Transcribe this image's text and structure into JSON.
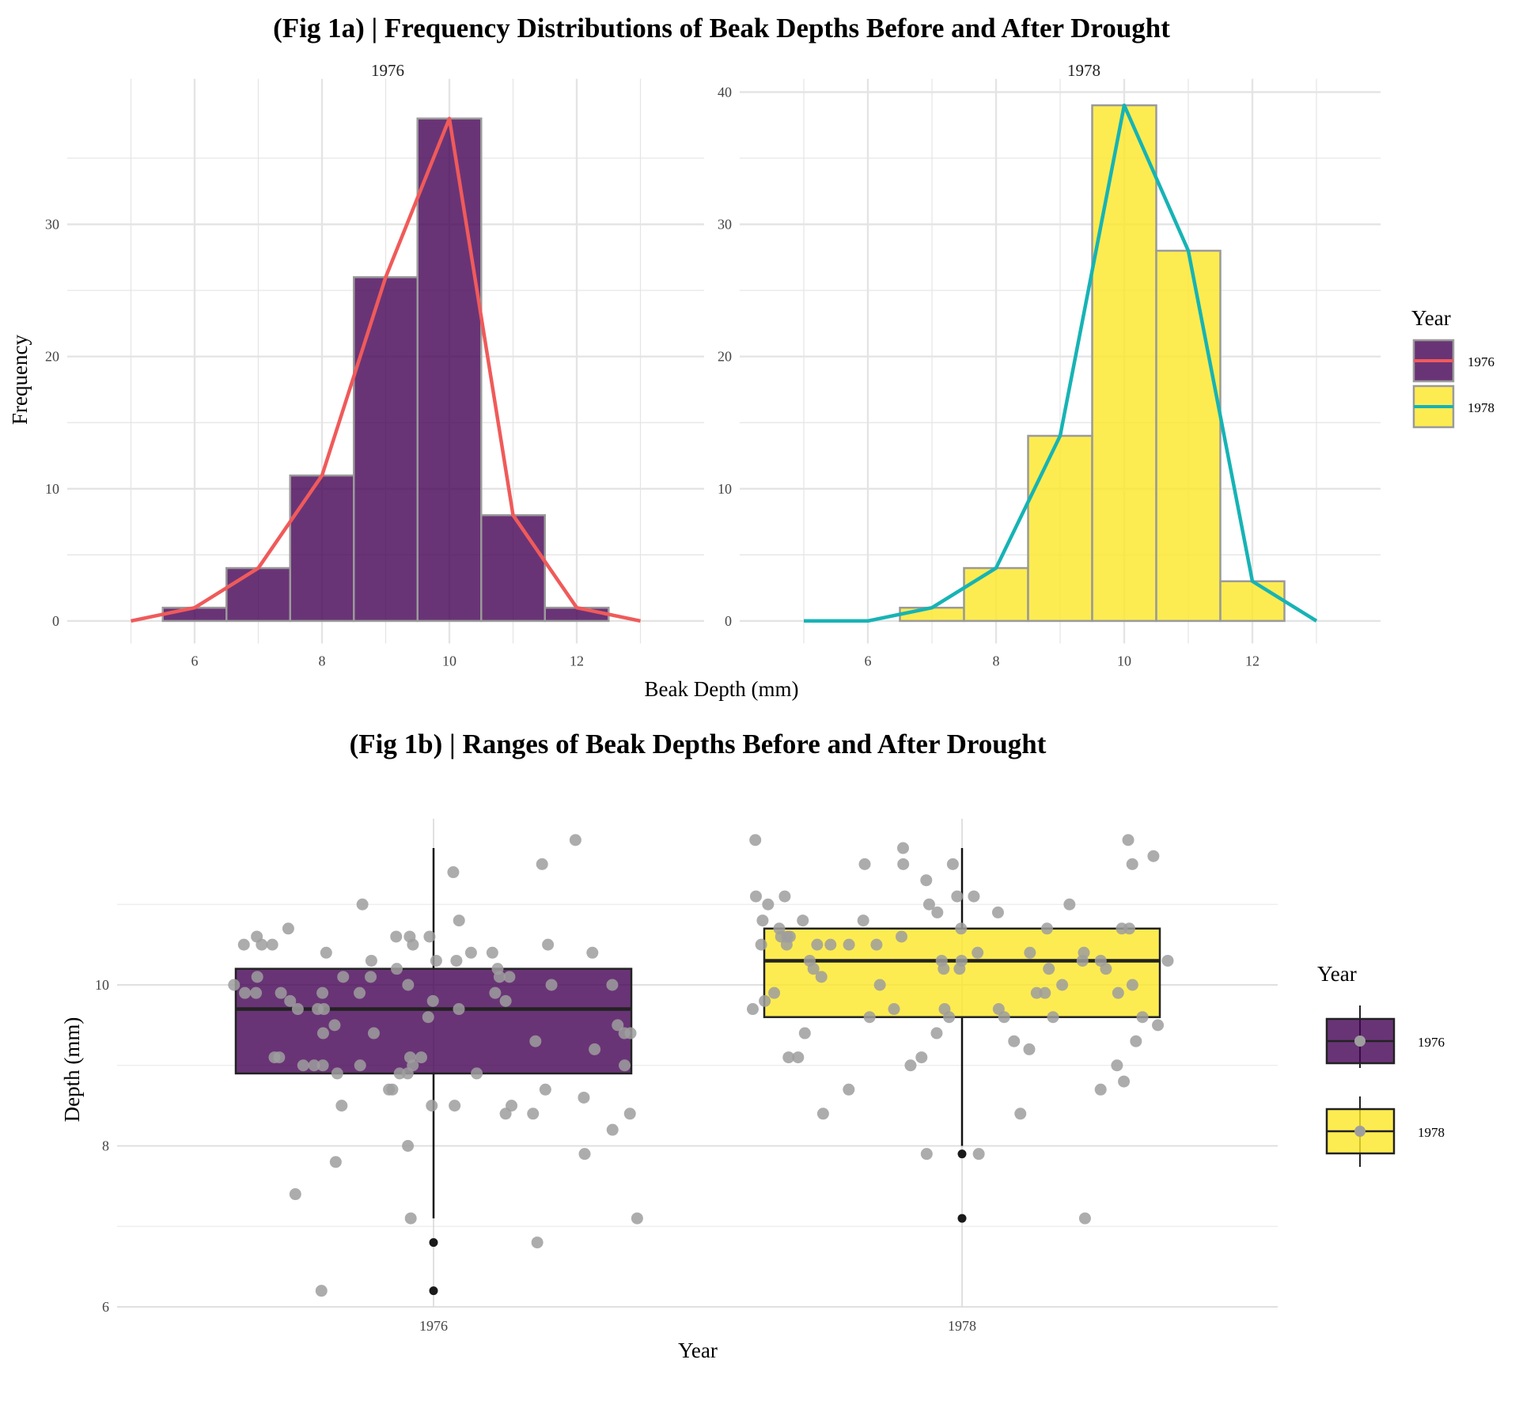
{
  "fig1a": {
    "title": "(Fig 1a) | Frequency Distributions of Beak Depths Before and After Drought",
    "xlabel": "Beak Depth (mm)",
    "ylabel": "Frequency",
    "legend_title": "Year"
  },
  "fig1b": {
    "title": "(Fig 1b) | Ranges of Beak Depths Before and After Drought",
    "xlabel": "Year",
    "ylabel": "Depth (mm)",
    "legend_title": "Year"
  },
  "colors": {
    "fill_1976": "#440154",
    "fill_1978": "#FDE725",
    "line_1976": "#F05A5A",
    "line_1978": "#17B3B5",
    "bar_border": "#9a9a9a",
    "grid": "#e4e4e4",
    "jitter": "#9e9e9e",
    "outlier": "#1a1a1a"
  },
  "chart_data": [
    {
      "type": "bar",
      "panel": "1976",
      "x_categories": [
        6,
        7,
        8,
        9,
        10,
        11,
        12
      ],
      "values": [
        1,
        4,
        11,
        26,
        38,
        8,
        1
      ],
      "x_ticks": [
        6,
        8,
        10,
        12
      ],
      "y_ticks": [
        0,
        10,
        20,
        30
      ],
      "xlim": [
        4.0,
        14.0
      ],
      "ylim": [
        -1.7,
        41
      ],
      "polygon": {
        "x": [
          5,
          6,
          7,
          8,
          9,
          10,
          11,
          12,
          13
        ],
        "y": [
          0,
          1,
          4,
          11,
          26,
          38,
          8,
          1,
          0
        ]
      },
      "legend": "right"
    },
    {
      "type": "bar",
      "panel": "1978",
      "x_categories": [
        6,
        7,
        8,
        9,
        10,
        11,
        12
      ],
      "values": [
        0,
        1,
        4,
        14,
        39,
        28,
        3
      ],
      "x_ticks": [
        6,
        8,
        10,
        12
      ],
      "y_ticks": [
        0,
        10,
        20,
        30,
        40
      ],
      "xlim": [
        4.0,
        14.0
      ],
      "ylim": [
        -1.7,
        41
      ],
      "polygon": {
        "x": [
          5,
          6,
          7,
          8,
          9,
          10,
          11,
          12,
          13
        ],
        "y": [
          0,
          0,
          1,
          4,
          14,
          39,
          28,
          3,
          0
        ]
      },
      "legend": "right"
    },
    {
      "type": "box",
      "categories": [
        "1976",
        "1978"
      ],
      "boxes": [
        {
          "name": "1976",
          "q1": 8.9,
          "median": 9.7,
          "q3": 10.2,
          "whisker_low": 7.1,
          "whisker_high": 11.7,
          "outliers": [
            6.8,
            6.2
          ]
        },
        {
          "name": "1978",
          "q1": 9.6,
          "median": 10.3,
          "q3": 10.7,
          "whisker_low": 8.0,
          "whisker_high": 11.7,
          "outliers": [
            7.9,
            7.1
          ]
        }
      ],
      "y_ticks": [
        6,
        8,
        10
      ],
      "ylim": [
        6.0,
        12.0
      ],
      "jitter_points": {
        "1976": [
          10.6,
          10.8,
          10.5,
          10.4,
          10.6,
          10.3,
          10.6,
          10.4,
          10.4,
          10.6,
          10.1,
          10.0,
          10.1,
          9.9,
          9.8,
          9.9,
          9.8,
          9.8,
          9.7,
          9.6,
          9.7,
          9.9,
          9.5,
          9.4,
          9.1,
          9.1,
          9.0,
          9.0,
          8.9,
          8.5,
          8.4,
          8.5,
          7.4,
          7.1,
          7.1,
          6.2,
          11.4,
          11.0,
          10.7,
          10.5,
          10.3,
          10.1,
          10.1,
          10.0,
          9.7,
          9.2,
          9.1,
          9.0,
          8.9,
          8.7,
          11.5,
          10.2,
          9.9,
          9.7,
          9.0,
          10.5,
          10.5,
          10.2,
          10.1,
          9.9,
          9.4,
          9.0,
          8.9,
          8.5,
          8.0,
          11.8,
          10.5,
          10.0,
          9.5,
          9.4,
          9.3,
          9.1,
          8.9,
          8.7,
          8.6,
          8.4,
          8.2,
          7.9,
          6.8,
          10.4,
          10.3,
          10.0,
          9.9,
          9.4,
          9.0,
          8.7,
          8.5,
          8.4,
          7.8
        ],
        "1978": [
          11.6,
          11.8,
          11.5,
          10.9,
          10.9,
          10.6,
          10.3,
          10.2,
          9.9,
          9.7,
          9.6,
          9.4,
          7.1,
          11.8,
          10.8,
          10.8,
          10.5,
          10.2,
          9.9,
          9.2,
          9.0,
          8.7,
          8.7,
          8.4,
          11.0,
          10.5,
          10.5,
          10.4,
          10.3,
          10.2,
          10.2,
          10.2,
          9.9,
          9.6,
          11.1,
          10.7,
          10.6,
          10.5,
          10.5,
          10.4,
          10.3,
          10.1,
          9.7,
          9.3,
          9.1,
          9.1,
          9.1,
          11.5,
          11.3,
          11.1,
          11.0,
          10.3,
          10.0,
          9.7,
          9.6,
          9.6,
          8.4,
          11.5,
          11.7,
          11.1,
          10.7,
          10.6,
          10.6,
          10.5,
          10.0,
          9.8,
          9.6,
          9.4,
          9.0,
          7.9,
          11.5,
          11.1,
          11.0,
          10.8,
          10.7,
          10.4,
          10.3,
          10.0,
          9.9,
          9.7,
          9.5,
          8.8,
          7.9,
          10.7,
          10.7,
          10.3,
          9.3
        ]
      },
      "legend": "right"
    }
  ]
}
